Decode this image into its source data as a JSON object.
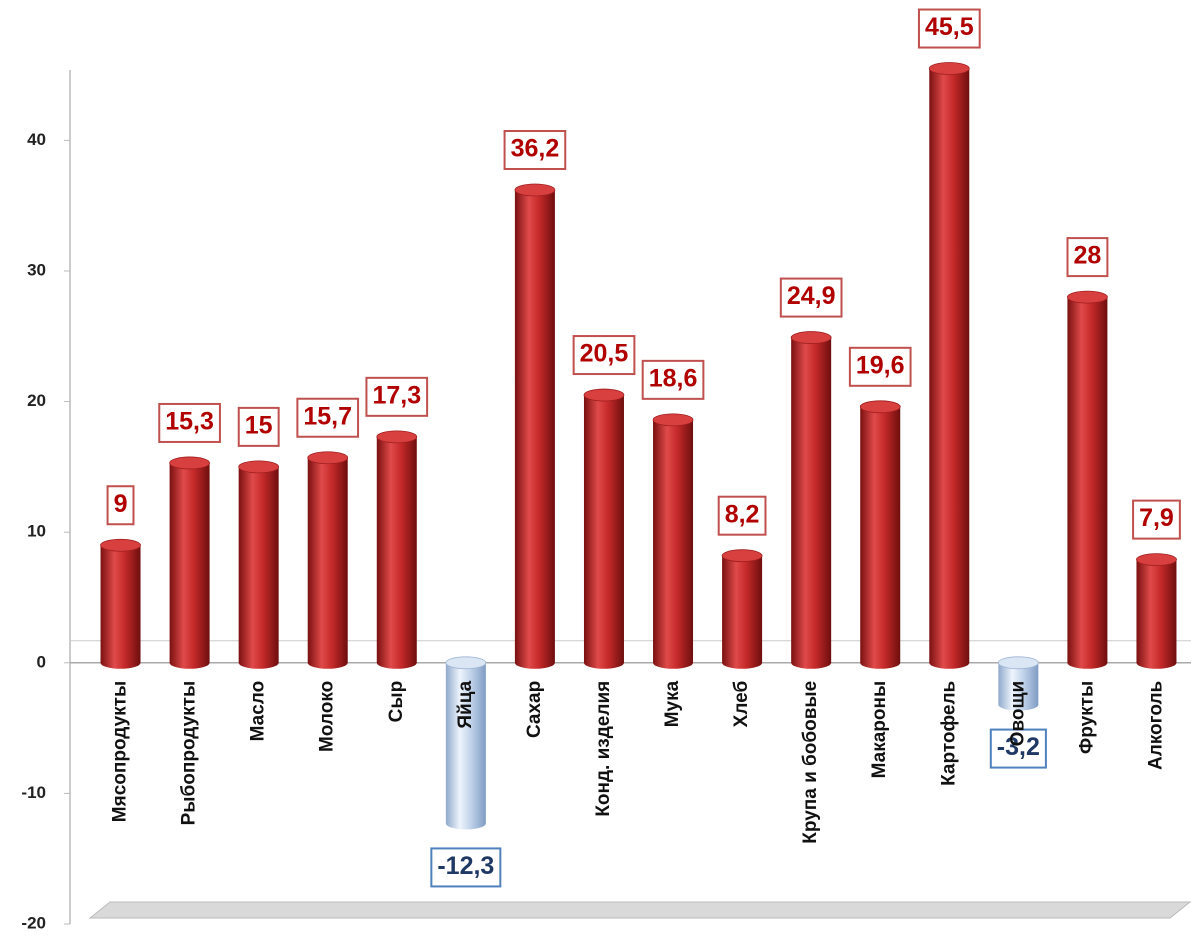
{
  "chart_data": {
    "type": "bar",
    "categories": [
      "Мясопродукты",
      "Рыбопродукты",
      "Масло",
      "Молоко",
      "Сыр",
      "Яйца",
      "Сахар",
      "Конд. изделия",
      "Мука",
      "Хлеб",
      "Крупа и бобовые",
      "Макароны",
      "Картофель",
      "Овощи",
      "Фрукты",
      "Алкоголь"
    ],
    "values": [
      9,
      15.3,
      15,
      15.7,
      17.3,
      -12.3,
      36.2,
      20.5,
      18.6,
      8.2,
      24.9,
      19.6,
      45.5,
      -3.2,
      28,
      7.9
    ],
    "value_labels": [
      "9",
      "15,3",
      "15",
      "15,7",
      "17,3",
      "-12,3",
      "36,2",
      "20,5",
      "18,6",
      "8,2",
      "24,9",
      "19,6",
      "45,5",
      "-3,2",
      "28",
      "7,9"
    ],
    "color": "#c62a2a",
    "negative_color": "#b9cde6",
    "ylim": [
      -20,
      46
    ],
    "yticks": [
      -20,
      -10,
      0,
      10,
      20,
      30,
      40
    ],
    "grid": false
  }
}
